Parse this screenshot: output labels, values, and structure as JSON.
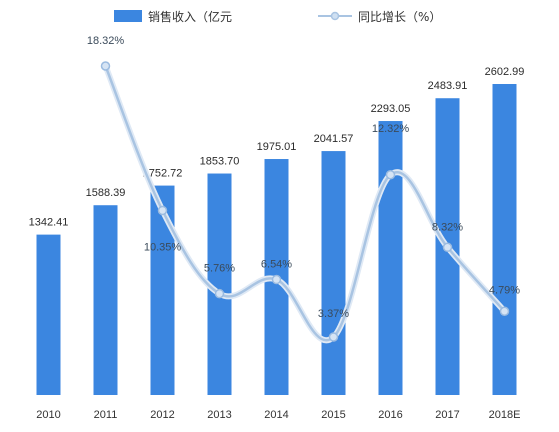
{
  "chart_data": {
    "type": "bar",
    "categories": [
      "2010",
      "2011",
      "2012",
      "2013",
      "2014",
      "2015",
      "2016",
      "2017",
      "2018E"
    ],
    "series": [
      {
        "name": "销售收入（亿元",
        "type": "bar",
        "values": [
          1342.41,
          1588.39,
          1752.72,
          1853.7,
          1975.01,
          2041.57,
          2293.05,
          2483.91,
          2602.99
        ],
        "labels": [
          "1342.41",
          "1588.39",
          "1752.72",
          "1853.70",
          "1975.01",
          "2041.57",
          "2293.05",
          "2483.91",
          "2602.99"
        ],
        "color": "#3b86e0"
      },
      {
        "name": "同比增长（%）",
        "type": "line",
        "x": [
          "2011",
          "2012",
          "2013",
          "2014",
          "2015",
          "2016",
          "2017",
          "2018E"
        ],
        "values": [
          18.32,
          10.35,
          5.76,
          6.54,
          3.37,
          12.32,
          8.32,
          4.79
        ],
        "labels": [
          "18.32%",
          "10.35%",
          "5.76%",
          "6.54%",
          "3.37%",
          "12.32%",
          "8.32%",
          "4.79%"
        ],
        "color": "#a9c4e2"
      }
    ],
    "y_bar_range": [
      0,
      2900
    ],
    "y_line_range": [
      0,
      20
    ],
    "grid": false,
    "legend_position": "top-center"
  }
}
